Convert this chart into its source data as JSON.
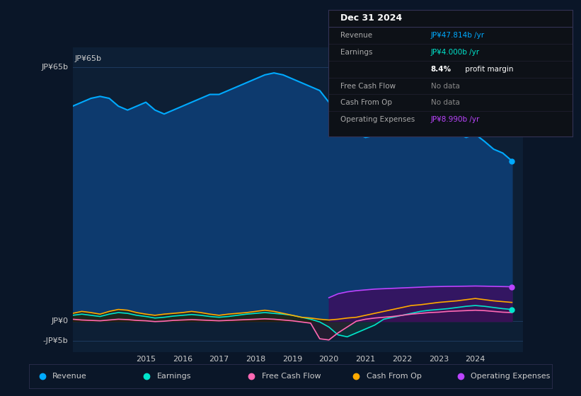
{
  "background_color": "#0a1628",
  "plot_bg_color": "#0d1f35",
  "grid_color": "#1e3a5f",
  "title_label": "JP¥65b",
  "y_labels": [
    "JP¥65b",
    "JP¥0",
    "-JP¥5b"
  ],
  "y_ticks": [
    65,
    0,
    -5
  ],
  "ylim": [
    -8,
    70
  ],
  "xlim_start": 2013.0,
  "xlim_end": 2025.3,
  "x_ticks": [
    2015,
    2016,
    2017,
    2018,
    2019,
    2020,
    2021,
    2022,
    2023,
    2024
  ],
  "revenue_color": "#00aaff",
  "revenue_fill_color": "#0d3a6e",
  "earnings_color": "#00e5cc",
  "earnings_fill_color": "#0d3a3a",
  "fcf_color": "#ff69b4",
  "fcf_fill_color": "#3a1a2a",
  "cashfromop_color": "#ffaa00",
  "cashfromop_fill_color": "#2a1a00",
  "opex_color": "#bb44ff",
  "opex_fill_color": "#3a1060",
  "info_box_color": "#111827",
  "info_box_border": "#333333",
  "revenue_data_x": [
    2013.0,
    2013.25,
    2013.5,
    2013.75,
    2014.0,
    2014.25,
    2014.5,
    2014.75,
    2015.0,
    2015.25,
    2015.5,
    2015.75,
    2016.0,
    2016.25,
    2016.5,
    2016.75,
    2017.0,
    2017.25,
    2017.5,
    2017.75,
    2018.0,
    2018.25,
    2018.5,
    2018.75,
    2019.0,
    2019.25,
    2019.5,
    2019.75,
    2020.0,
    2020.25,
    2020.5,
    2020.75,
    2021.0,
    2021.25,
    2021.5,
    2021.75,
    2022.0,
    2022.25,
    2022.5,
    2022.75,
    2023.0,
    2023.25,
    2023.5,
    2023.75,
    2024.0,
    2024.25,
    2024.5,
    2024.75,
    2025.0
  ],
  "revenue_data_y": [
    55,
    56,
    57,
    57.5,
    57,
    55,
    54,
    55,
    56,
    54,
    53,
    54,
    55,
    56,
    57,
    58,
    58,
    59,
    60,
    61,
    62,
    63,
    63.5,
    63,
    62,
    61,
    60,
    59,
    56,
    53,
    50,
    48,
    47,
    47.5,
    48,
    48.5,
    49,
    49.5,
    50,
    50.5,
    50,
    49,
    48,
    47,
    47.8,
    46,
    44,
    43,
    41
  ],
  "earnings_data_x": [
    2013.0,
    2013.25,
    2013.5,
    2013.75,
    2014.0,
    2014.25,
    2014.5,
    2014.75,
    2015.0,
    2015.25,
    2015.5,
    2015.75,
    2016.0,
    2016.25,
    2016.5,
    2016.75,
    2017.0,
    2017.25,
    2017.5,
    2017.75,
    2018.0,
    2018.25,
    2018.5,
    2018.75,
    2019.0,
    2019.25,
    2019.5,
    2019.75,
    2020.0,
    2020.25,
    2020.5,
    2020.75,
    2021.0,
    2021.25,
    2021.5,
    2021.75,
    2022.0,
    2022.25,
    2022.5,
    2022.75,
    2023.0,
    2023.25,
    2023.5,
    2023.75,
    2024.0,
    2024.25,
    2024.5,
    2024.75,
    2025.0
  ],
  "earnings_data_y": [
    1.5,
    1.8,
    1.5,
    1.2,
    1.8,
    2.2,
    2.0,
    1.5,
    1.2,
    0.8,
    1.0,
    1.3,
    1.5,
    1.7,
    1.5,
    1.2,
    1.0,
    1.2,
    1.5,
    1.8,
    2.0,
    2.2,
    2.0,
    1.8,
    1.5,
    1.0,
    0.5,
    -0.2,
    -1.5,
    -3.5,
    -4.0,
    -3.0,
    -2.0,
    -1.0,
    0.5,
    1.0,
    1.5,
    2.0,
    2.5,
    2.8,
    3.0,
    3.2,
    3.5,
    3.8,
    4.0,
    3.8,
    3.5,
    3.2,
    3.0
  ],
  "fcf_data_x": [
    2013.0,
    2013.25,
    2013.5,
    2013.75,
    2014.0,
    2014.25,
    2014.5,
    2014.75,
    2015.0,
    2015.25,
    2015.5,
    2015.75,
    2016.0,
    2016.25,
    2016.5,
    2016.75,
    2017.0,
    2017.25,
    2017.5,
    2017.75,
    2018.0,
    2018.25,
    2018.5,
    2018.75,
    2019.0,
    2019.25,
    2019.5,
    2019.75,
    2020.0,
    2020.25,
    2020.5,
    2020.75,
    2021.0,
    2021.25,
    2021.5,
    2021.75,
    2022.0,
    2022.25,
    2022.5,
    2022.75,
    2023.0,
    2023.25,
    2023.5,
    2023.75,
    2024.0,
    2024.25,
    2024.5,
    2024.75,
    2025.0
  ],
  "fcf_data_y": [
    0.5,
    0.3,
    0.2,
    0.1,
    0.3,
    0.5,
    0.4,
    0.2,
    0.1,
    -0.1,
    0.0,
    0.2,
    0.3,
    0.4,
    0.3,
    0.2,
    0.1,
    0.2,
    0.3,
    0.4,
    0.5,
    0.6,
    0.5,
    0.3,
    0.1,
    -0.2,
    -0.5,
    -4.5,
    -4.8,
    -3.0,
    -1.5,
    0.0,
    0.5,
    0.8,
    1.0,
    1.2,
    1.5,
    1.8,
    2.0,
    2.2,
    2.3,
    2.5,
    2.6,
    2.7,
    2.8,
    2.7,
    2.5,
    2.3,
    2.2
  ],
  "cashfromop_data_x": [
    2013.0,
    2013.25,
    2013.5,
    2013.75,
    2014.0,
    2014.25,
    2014.5,
    2014.75,
    2015.0,
    2015.25,
    2015.5,
    2015.75,
    2016.0,
    2016.25,
    2016.5,
    2016.75,
    2017.0,
    2017.25,
    2017.5,
    2017.75,
    2018.0,
    2018.25,
    2018.5,
    2018.75,
    2019.0,
    2019.25,
    2019.5,
    2019.75,
    2020.0,
    2020.25,
    2020.5,
    2020.75,
    2021.0,
    2021.25,
    2021.5,
    2021.75,
    2022.0,
    2022.25,
    2022.5,
    2022.75,
    2023.0,
    2023.25,
    2023.5,
    2023.75,
    2024.0,
    2024.25,
    2024.5,
    2024.75,
    2025.0
  ],
  "cashfromop_data_y": [
    2.0,
    2.5,
    2.2,
    1.8,
    2.5,
    3.0,
    2.8,
    2.2,
    1.8,
    1.5,
    1.8,
    2.0,
    2.2,
    2.5,
    2.2,
    1.8,
    1.5,
    1.8,
    2.0,
    2.2,
    2.5,
    2.8,
    2.5,
    2.0,
    1.5,
    1.0,
    0.8,
    0.5,
    0.3,
    0.5,
    0.8,
    1.0,
    1.5,
    2.0,
    2.5,
    3.0,
    3.5,
    4.0,
    4.2,
    4.5,
    4.8,
    5.0,
    5.2,
    5.5,
    5.8,
    5.5,
    5.2,
    5.0,
    4.8
  ],
  "opex_data_x": [
    2020.0,
    2020.25,
    2020.5,
    2020.75,
    2021.0,
    2021.25,
    2021.5,
    2021.75,
    2022.0,
    2022.25,
    2022.5,
    2022.75,
    2023.0,
    2023.25,
    2023.5,
    2023.75,
    2024.0,
    2024.25,
    2024.5,
    2024.75,
    2025.0
  ],
  "opex_data_y": [
    6.0,
    7.0,
    7.5,
    7.8,
    8.0,
    8.2,
    8.3,
    8.4,
    8.5,
    8.6,
    8.7,
    8.8,
    8.85,
    8.9,
    8.92,
    8.95,
    8.99,
    8.95,
    8.9,
    8.85,
    8.8
  ],
  "legend_items": [
    {
      "label": "Revenue",
      "color": "#00aaff"
    },
    {
      "label": "Earnings",
      "color": "#00e5cc"
    },
    {
      "label": "Free Cash Flow",
      "color": "#ff69b4"
    },
    {
      "label": "Cash From Op",
      "color": "#ffaa00"
    },
    {
      "label": "Operating Expenses",
      "color": "#bb44ff"
    }
  ],
  "infobox_date": "Dec 31 2024",
  "infobox_rows": [
    {
      "label": "Revenue",
      "value": "JP¥47.814b /yr",
      "value_color": "#00aaff",
      "nodata": false
    },
    {
      "label": "Earnings",
      "value": "JP¥4.000b /yr",
      "value_color": "#00e5cc",
      "nodata": false
    },
    {
      "label": "",
      "value": "8.4% profit margin",
      "value_color": "#ffffff",
      "nodata": false,
      "bold_prefix": "8.4%"
    },
    {
      "label": "Free Cash Flow",
      "value": "No data",
      "value_color": "#888888",
      "nodata": true
    },
    {
      "label": "Cash From Op",
      "value": "No data",
      "value_color": "#888888",
      "nodata": true
    },
    {
      "label": "Operating Expenses",
      "value": "JP¥8.990b /yr",
      "value_color": "#bb44ff",
      "nodata": false
    }
  ]
}
